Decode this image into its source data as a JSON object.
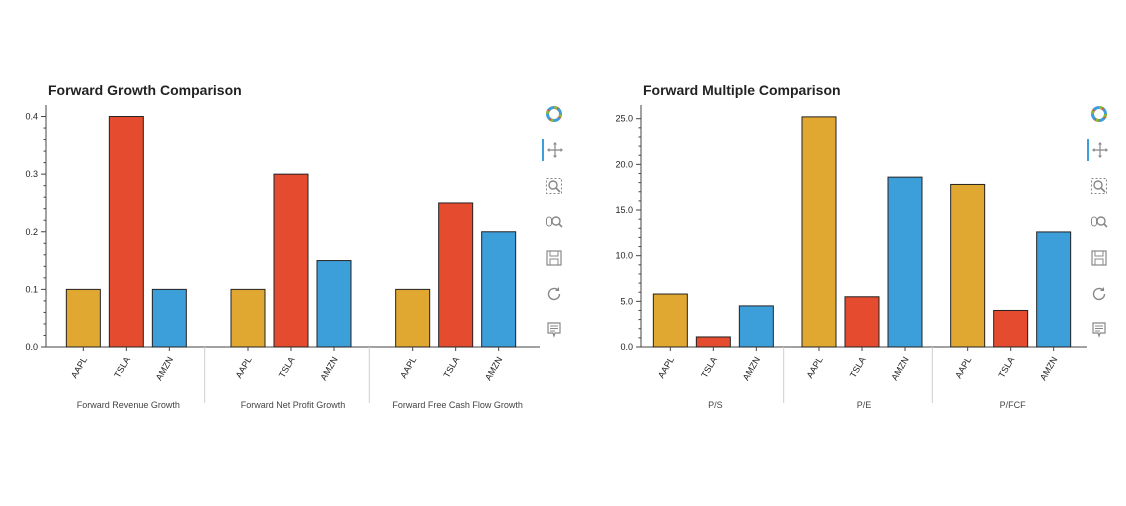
{
  "colors": {
    "AAPL": "#e1a831",
    "TSLA": "#e54b2e",
    "AMZN": "#3d9fda",
    "axis": "#444444",
    "text": "#222222"
  },
  "chart_data": [
    {
      "type": "bar",
      "title": "Forward Growth Comparison",
      "groups": [
        "Forward Revenue Growth",
        "Forward Net Profit Growth",
        "Forward Free Cash Flow Growth"
      ],
      "categories": [
        "AAPL",
        "TSLA",
        "AMZN"
      ],
      "series": [
        {
          "name": "AAPL",
          "values": [
            0.1,
            0.1,
            0.1
          ]
        },
        {
          "name": "TSLA",
          "values": [
            0.4,
            0.3,
            0.25
          ]
        },
        {
          "name": "AMZN",
          "values": [
            0.1,
            0.15,
            0.2
          ]
        }
      ],
      "yticks": [
        "0.0",
        "0.1",
        "0.2",
        "0.3",
        "0.4"
      ],
      "ylim": [
        0,
        0.42
      ],
      "grid": false
    },
    {
      "type": "bar",
      "title": "Forward Multiple Comparison",
      "groups": [
        "P/S",
        "P/E",
        "P/FCF"
      ],
      "categories": [
        "AAPL",
        "TSLA",
        "AMZN"
      ],
      "series": [
        {
          "name": "AAPL",
          "values": [
            5.8,
            25.2,
            17.8
          ]
        },
        {
          "name": "TSLA",
          "values": [
            1.1,
            5.5,
            4.0
          ]
        },
        {
          "name": "AMZN",
          "values": [
            4.5,
            18.6,
            12.6
          ]
        }
      ],
      "yticks": [
        "0.0",
        "5.0",
        "10.0",
        "15.0",
        "20.0",
        "25.0"
      ],
      "ylim": [
        0,
        26.5
      ],
      "grid": false
    }
  ],
  "toolbar": [
    "bokeh-logo-icon",
    "pan-icon",
    "box-zoom-icon",
    "wheel-zoom-icon",
    "save-icon",
    "reset-icon",
    "hover-icon"
  ]
}
